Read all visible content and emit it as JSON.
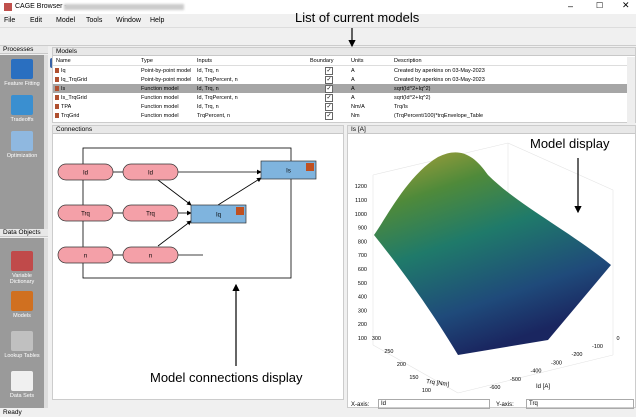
{
  "window": {
    "title": "CAGE Browser -",
    "menu": [
      "File",
      "Edit",
      "Model",
      "Tools",
      "Window",
      "Help"
    ]
  },
  "processes": {
    "title": "Processes",
    "items": [
      "Feature Fitting",
      "Tradeoffs",
      "Optimization"
    ]
  },
  "data_objects": {
    "title": "Data Objects",
    "items": [
      "Variable Dictionary",
      "Models",
      "Lookup Tables",
      "Data Sets"
    ]
  },
  "models": {
    "title": "Models",
    "columns": [
      "Name",
      "Type",
      "Inputs",
      "Boundary",
      "Units",
      "Description"
    ],
    "rows": [
      [
        "Iq",
        "Point-by-point model",
        "Id, Trq, n",
        "A",
        "Created by aperkins on 03-May-2023"
      ],
      [
        "Iq_TrqGrid",
        "Point-by-point model",
        "Id, TrqPercent, n",
        "A",
        "Created by aperkins on 03-May-2023"
      ],
      [
        "Is",
        "Function model",
        "Id, Trq, n",
        "A",
        "sqrt(Id^2+Iq^2)"
      ],
      [
        "Is_TrqGrid",
        "Function model",
        "Id, TrqPercent, n",
        "A",
        "sqrt(Id^2+Iq^2)"
      ],
      [
        "TPA",
        "Function model",
        "Id, Trq, n",
        "Nm/A",
        "Trq/Is"
      ],
      [
        "TrqGrid",
        "Function model",
        "TrqPercent, n",
        "Nm",
        "(TrqPercent/100)*trqEnvelope_Table"
      ]
    ]
  },
  "connections": {
    "title": "Connections",
    "nodes": [
      "Id",
      "Id",
      "Trq",
      "Trq",
      "n",
      "n",
      "Iq",
      "Is"
    ]
  },
  "plot": {
    "title": "Is [A]",
    "zticks": [
      100,
      200,
      300,
      400,
      500,
      600,
      700,
      800,
      900,
      1000,
      1100,
      1200
    ],
    "trq_ticks": [
      300,
      250,
      200,
      150,
      100,
      50,
      0
    ],
    "trq_label": "Trq [Nm]",
    "id_ticks": [
      -600,
      -500,
      -400,
      -300,
      -200,
      -100,
      0
    ],
    "id_label": "Id [A]",
    "x_axis_label": "X-axis:",
    "x_axis_value": "Id",
    "y_axis_label": "Y-axis:",
    "y_axis_value": "Trq"
  },
  "annotations": [
    "List of current models",
    "Model display",
    "Model connections display"
  ],
  "status": "Ready"
}
